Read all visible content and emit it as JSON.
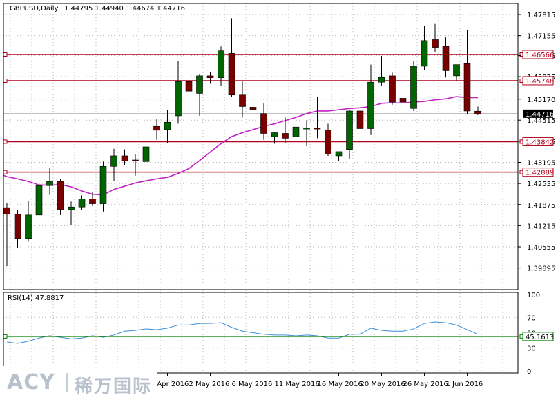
{
  "header": {
    "symbol": "GBPUSD,Daily",
    "ohlc": "1.44795 1.44940 1.44674 1.44716"
  },
  "chart_data": {
    "type": "candlestick",
    "symbol": "GBPUSD,Daily",
    "price_axis": {
      "ylim": [
        1.3922,
        1.4816
      ],
      "ticks": [
        "1.47815",
        "1.47155",
        "1.46535",
        "1.45875",
        "1.45170",
        "1.44515",
        "1.43855",
        "1.43195",
        "1.42535",
        "1.41875",
        "1.41215",
        "1.40555",
        "1.39895"
      ]
    },
    "x_ticks": [
      "26 Apr 2016",
      "2 May 2016",
      "6 May 2016",
      "11 May 2016",
      "16 May 2016",
      "20 May 2016",
      "26 May 2016",
      "1 Jun 2016"
    ],
    "x_tick_index": [
      15,
      19,
      23,
      27,
      31,
      35,
      39,
      43
    ],
    "candles": [
      {
        "o": 1.4178,
        "h": 1.4192,
        "l": 1.3995,
        "c": 1.4158
      },
      {
        "o": 1.4158,
        "h": 1.417,
        "l": 1.4052,
        "c": 1.4082
      },
      {
        "o": 1.4082,
        "h": 1.4198,
        "l": 1.4072,
        "c": 1.4155
      },
      {
        "o": 1.4155,
        "h": 1.424,
        "l": 1.4105,
        "c": 1.4247
      },
      {
        "o": 1.4247,
        "h": 1.4302,
        "l": 1.4218,
        "c": 1.426
      },
      {
        "o": 1.426,
        "h": 1.4268,
        "l": 1.4155,
        "c": 1.4172
      },
      {
        "o": 1.4172,
        "h": 1.4197,
        "l": 1.4122,
        "c": 1.418
      },
      {
        "o": 1.418,
        "h": 1.4216,
        "l": 1.417,
        "c": 1.4205
      },
      {
        "o": 1.4205,
        "h": 1.4228,
        "l": 1.4183,
        "c": 1.419
      },
      {
        "o": 1.419,
        "h": 1.4322,
        "l": 1.4166,
        "c": 1.4307
      },
      {
        "o": 1.4307,
        "h": 1.4362,
        "l": 1.4262,
        "c": 1.434
      },
      {
        "o": 1.434,
        "h": 1.436,
        "l": 1.431,
        "c": 1.4324
      },
      {
        "o": 1.4327,
        "h": 1.4345,
        "l": 1.4278,
        "c": 1.4325
      },
      {
        "o": 1.4322,
        "h": 1.4395,
        "l": 1.43,
        "c": 1.4368
      },
      {
        "o": 1.4432,
        "h": 1.4455,
        "l": 1.439,
        "c": 1.442
      },
      {
        "o": 1.4422,
        "h": 1.4483,
        "l": 1.438,
        "c": 1.4445
      },
      {
        "o": 1.4465,
        "h": 1.4637,
        "l": 1.444,
        "c": 1.4572
      },
      {
        "o": 1.4572,
        "h": 1.46,
        "l": 1.4509,
        "c": 1.4542
      },
      {
        "o": 1.4535,
        "h": 1.4595,
        "l": 1.4465,
        "c": 1.459
      },
      {
        "o": 1.459,
        "h": 1.4602,
        "l": 1.4565,
        "c": 1.4584
      },
      {
        "o": 1.4584,
        "h": 1.4682,
        "l": 1.4558,
        "c": 1.4668
      },
      {
        "o": 1.466,
        "h": 1.477,
        "l": 1.4525,
        "c": 1.453
      },
      {
        "o": 1.453,
        "h": 1.4572,
        "l": 1.446,
        "c": 1.4494
      },
      {
        "o": 1.4492,
        "h": 1.4525,
        "l": 1.444,
        "c": 1.4485
      },
      {
        "o": 1.4472,
        "h": 1.4505,
        "l": 1.439,
        "c": 1.441
      },
      {
        "o": 1.44,
        "h": 1.4415,
        "l": 1.4378,
        "c": 1.4412
      },
      {
        "o": 1.441,
        "h": 1.446,
        "l": 1.438,
        "c": 1.4395
      },
      {
        "o": 1.44,
        "h": 1.4435,
        "l": 1.4385,
        "c": 1.443
      },
      {
        "o": 1.4425,
        "h": 1.4451,
        "l": 1.437,
        "c": 1.4427
      },
      {
        "o": 1.4427,
        "h": 1.4525,
        "l": 1.4395,
        "c": 1.4425
      },
      {
        "o": 1.442,
        "h": 1.444,
        "l": 1.434,
        "c": 1.4345
      },
      {
        "o": 1.434,
        "h": 1.4352,
        "l": 1.4325,
        "c": 1.4353
      },
      {
        "o": 1.436,
        "h": 1.4485,
        "l": 1.433,
        "c": 1.448
      },
      {
        "o": 1.448,
        "h": 1.4492,
        "l": 1.442,
        "c": 1.4425
      },
      {
        "o": 1.4425,
        "h": 1.4625,
        "l": 1.4405,
        "c": 1.457
      },
      {
        "o": 1.457,
        "h": 1.4652,
        "l": 1.456,
        "c": 1.4585
      },
      {
        "o": 1.459,
        "h": 1.46,
        "l": 1.45,
        "c": 1.4508
      },
      {
        "o": 1.452,
        "h": 1.4545,
        "l": 1.445,
        "c": 1.4508
      },
      {
        "o": 1.4488,
        "h": 1.4635,
        "l": 1.448,
        "c": 1.462
      },
      {
        "o": 1.462,
        "h": 1.4745,
        "l": 1.4608,
        "c": 1.47
      },
      {
        "o": 1.4703,
        "h": 1.4752,
        "l": 1.4665,
        "c": 1.4679
      },
      {
        "o": 1.4682,
        "h": 1.471,
        "l": 1.4585,
        "c": 1.4606
      },
      {
        "o": 1.459,
        "h": 1.4625,
        "l": 1.4575,
        "c": 1.4625
      },
      {
        "o": 1.4628,
        "h": 1.4732,
        "l": 1.447,
        "c": 1.448
      },
      {
        "o": 1.44795,
        "h": 1.4494,
        "l": 1.44674,
        "c": 1.44716
      }
    ],
    "moving_average": [
      1.4275,
      1.4268,
      1.426,
      1.4249,
      1.4248,
      1.425,
      1.4243,
      1.423,
      1.422,
      1.4218,
      1.4235,
      1.4245,
      1.4255,
      1.4262,
      1.4268,
      1.4273,
      1.4285,
      1.43,
      1.4325,
      1.4352,
      1.4378,
      1.44,
      1.4412,
      1.4422,
      1.4432,
      1.444,
      1.445,
      1.446,
      1.4472,
      1.448,
      1.448,
      1.4484,
      1.4488,
      1.449,
      1.4494,
      1.4504,
      1.4506,
      1.4505,
      1.4508,
      1.451,
      1.4515,
      1.4518,
      1.4525,
      1.4522,
      1.4522
    ],
    "levels": [
      "1.46566",
      "1.45748",
      "1.43842",
      "1.42889"
    ],
    "current_price": "1.44716",
    "rsi": {
      "label": "RSI(14) 47.8817",
      "ticks": [
        "100",
        "70",
        "50",
        "30",
        "0"
      ],
      "ylim": [
        0,
        100
      ],
      "level": "45.1613",
      "values": [
        38,
        36,
        39,
        43,
        46,
        44,
        42,
        43,
        46,
        44,
        47,
        52,
        53,
        55,
        54,
        56,
        60,
        60,
        62,
        62,
        63,
        57,
        52,
        50,
        48,
        47,
        47,
        46,
        47,
        46,
        43,
        43,
        48,
        48,
        56,
        53,
        52,
        52,
        55,
        62,
        64,
        63,
        60,
        54,
        48
      ]
    },
    "watermark_text": "ACY",
    "watermark_cn": "稀万国际"
  }
}
